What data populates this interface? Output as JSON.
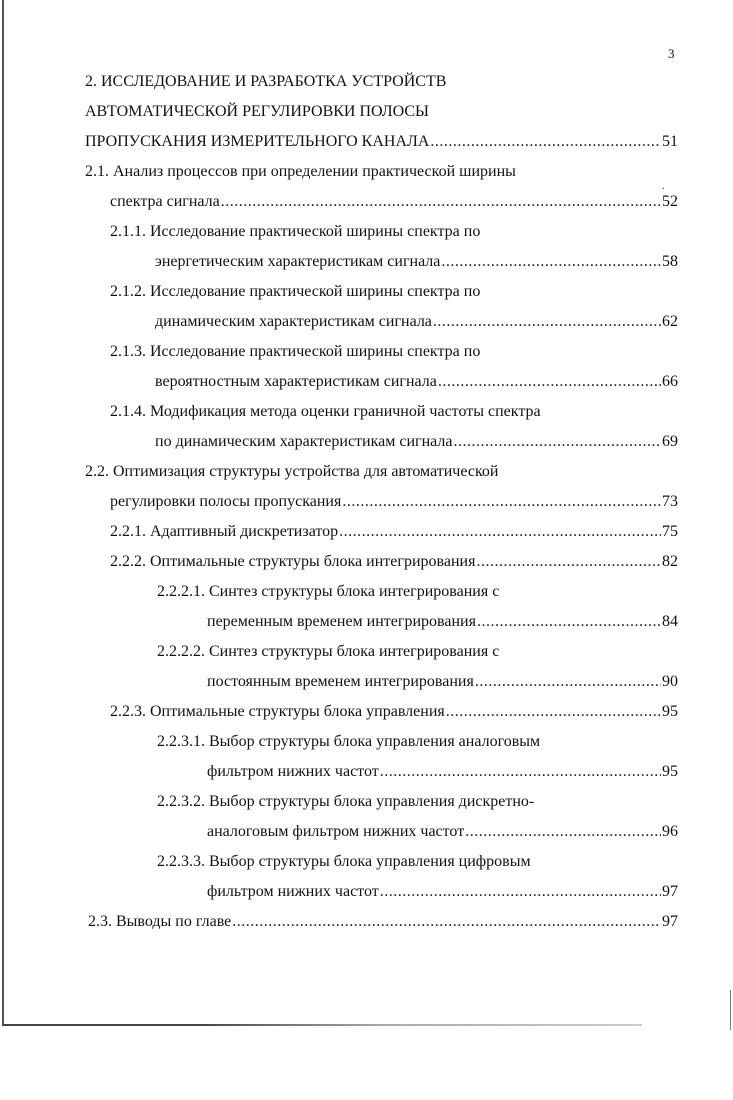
{
  "page_number": "3",
  "toc": [
    {
      "text": "2. ИССЛЕДОВАНИЕ И РАЗРАБОТКА УСТРОЙСТВ",
      "page": "",
      "style": "l0"
    },
    {
      "text": "АВТОМАТИЧЕСКОЙ РЕГУЛИРОВКИ ПОЛОСЫ",
      "page": "",
      "style": "l0"
    },
    {
      "text": "ПРОПУСКАНИЯ ИЗМЕРИТЕЛЬНОГО КАНАЛА ",
      "page": "51",
      "style": "l0"
    },
    {
      "text": "2.1. Анализ процессов при определении практической ширины",
      "page": "",
      "style": "l0"
    },
    {
      "text": "спектра сигнала",
      "page": "52",
      "style": "l0c"
    },
    {
      "text": "2.1.1. Исследование практической ширины спектра по",
      "page": "",
      "style": "l1"
    },
    {
      "text": "энергетическим характеристикам сигнала ",
      "page": "58",
      "style": "l1c"
    },
    {
      "text": "2.1.2. Исследование практической ширины спектра по",
      "page": "",
      "style": "l1"
    },
    {
      "text": "динамическим характеристикам сигнала ",
      "page": "62",
      "style": "l1c"
    },
    {
      "text": "2.1.3. Исследование практической ширины спектра по",
      "page": "",
      "style": "l1"
    },
    {
      "text": "вероятностным характеристикам сигнала",
      "page": "66",
      "style": "l1c"
    },
    {
      "text": "2.1.4. Модификация метода оценки граничной частоты спектра",
      "page": "",
      "style": "l1"
    },
    {
      "text": "по динамическим характеристикам сигнала",
      "page": "69",
      "style": "l1c"
    },
    {
      "text": "2.2. Оптимизация структуры устройства для автоматической",
      "page": "",
      "style": "l0"
    },
    {
      "text": "регулировки полосы пропускания",
      "page": "73",
      "style": "l0c"
    },
    {
      "text": "2.2.1. Адаптивный дискретизатор ",
      "page": "75",
      "style": "l1"
    },
    {
      "text": "2.2.2. Оптимальные структуры блока интегрирования",
      "page": "82",
      "style": "l1"
    },
    {
      "text": "2.2.2.1. Синтез структуры блока интегрирования с",
      "page": "",
      "style": "l2"
    },
    {
      "text": "переменным временем интегрирования",
      "page": "84",
      "style": "l2c"
    },
    {
      "text": "2.2.2.2. Синтез структуры блока интегрирования с",
      "page": "",
      "style": "l2"
    },
    {
      "text": "постоянным временем интегрирования ",
      "page": "90",
      "style": "l2c"
    },
    {
      "text": "2.2.3. Оптимальные структуры блока управления",
      "page": "95",
      "style": "l1"
    },
    {
      "text": "2.2.3.1. Выбор структуры блока управления аналоговым",
      "page": "",
      "style": "l2"
    },
    {
      "text": "фильтром нижних частот ",
      "page": "95",
      "style": "l2c"
    },
    {
      "text": "2.2.3.2. Выбор структуры блока управления дискретно-",
      "page": "",
      "style": "l2"
    },
    {
      "text": "аналоговым фильтром нижних частот",
      "page": "96",
      "style": "l2c"
    },
    {
      "text": "2.2.3.3. Выбор структуры блока управления цифровым",
      "page": "",
      "style": "l2"
    },
    {
      "text": "фильтром нижних частот ",
      "page": "97",
      "style": "l2c"
    },
    {
      "text": "2.3. Выводы по главе",
      "page": "97",
      "style": "l0b"
    }
  ]
}
